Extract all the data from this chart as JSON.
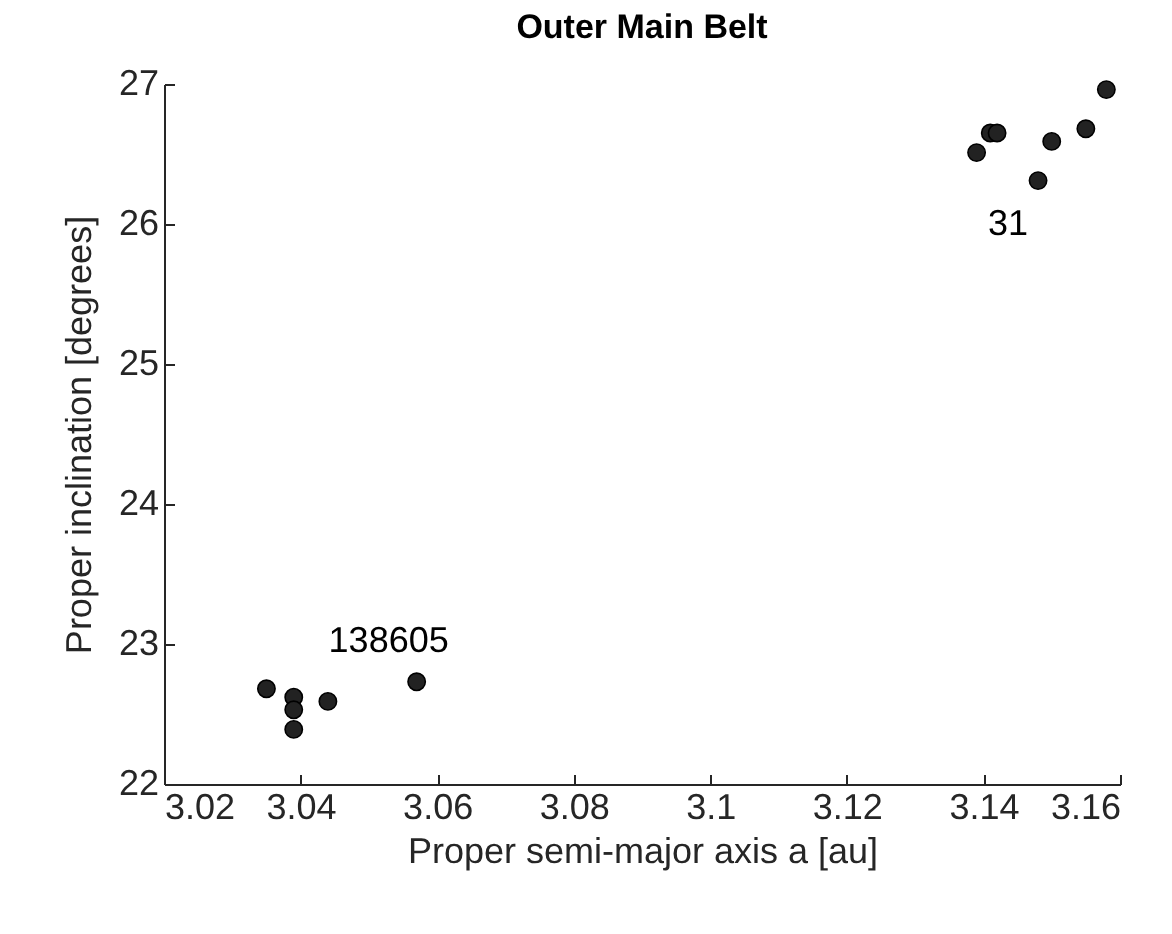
{
  "chart_data": {
    "type": "scatter",
    "title": "Outer Main Belt",
    "xlabel": "Proper semi-major axis a [au]",
    "ylabel": "Proper inclination [degrees]",
    "x": [
      3.035,
      3.039,
      3.039,
      3.039,
      3.044,
      3.057,
      3.139,
      3.141,
      3.142,
      3.148,
      3.15,
      3.155,
      3.158
    ],
    "series": [
      {
        "color": "#222222",
        "values": [
          22.68,
          22.62,
          22.53,
          22.39,
          22.59,
          22.73,
          26.51,
          26.65,
          26.65,
          26.31,
          26.59,
          26.68,
          26.96
        ]
      }
    ],
    "xlim": [
      3.02,
      3.16
    ],
    "xticks": [
      3.02,
      3.04,
      3.06,
      3.08,
      3.1,
      3.12,
      3.14,
      3.16
    ],
    "ylim": [
      22,
      27
    ],
    "yticks": [
      22,
      23,
      24,
      25,
      26,
      27
    ],
    "marker": "circle",
    "grid": false,
    "annotations": [
      {
        "text": "138605",
        "x": 3.057,
        "y": 22.73
      },
      {
        "text": "31",
        "x": 3.148,
        "y": 26.31
      }
    ]
  }
}
